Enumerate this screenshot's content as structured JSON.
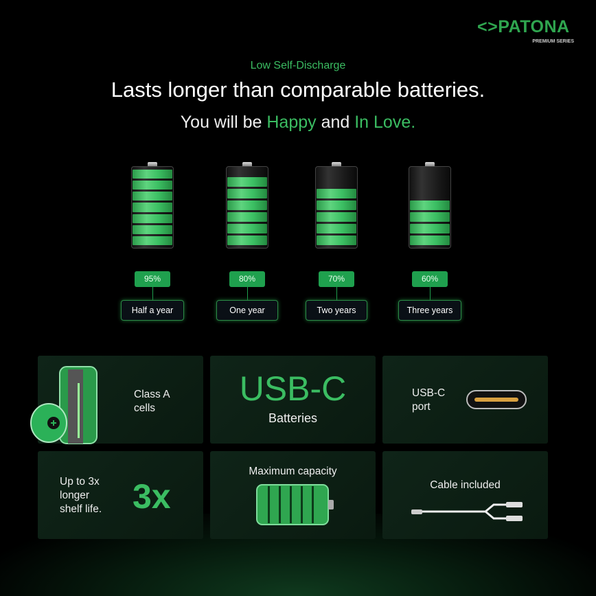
{
  "brand": {
    "name": "PATONA",
    "tagline": "PREMIUM SERIES",
    "color": "#2fa64f"
  },
  "header": {
    "kicker": "Low Self-Discharge",
    "title": "Lasts longer than comparable batteries.",
    "subtitle_pre": "You will be ",
    "subtitle_g1": "Happy",
    "subtitle_mid": " and ",
    "subtitle_g2": "In Love."
  },
  "batteries": [
    {
      "percent": "95%",
      "label": "Half a year",
      "segments": 7
    },
    {
      "percent": "80%",
      "label": "One year",
      "segments": 6
    },
    {
      "percent": "70%",
      "label": "Two years",
      "segments": 5
    },
    {
      "percent": "60%",
      "label": "Three years",
      "segments": 4
    }
  ],
  "features": {
    "class_a": "Class A cells",
    "usbc_big": "USB-C",
    "usbc_sub": "Batteries",
    "port": "USB-C port",
    "shelf": "Up to 3x longer shelf life.",
    "shelf_big": "3x",
    "capacity": "Maximum capacity",
    "cable": "Cable included"
  },
  "colors": {
    "accent": "#3bbd62",
    "badge": "#1fa04e",
    "background": "#000000"
  }
}
